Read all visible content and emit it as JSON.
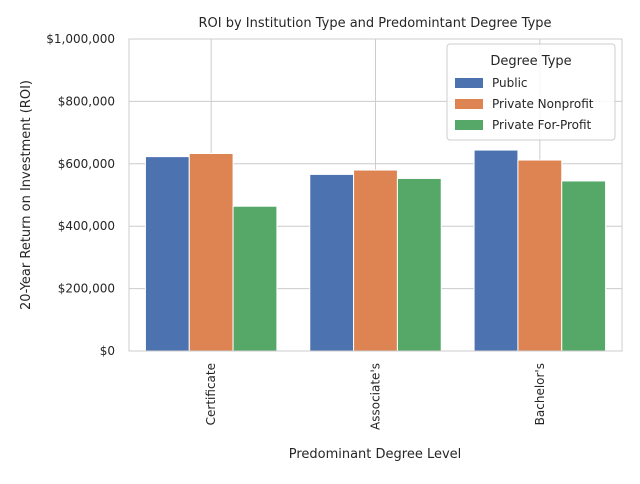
{
  "chart_data": {
    "type": "bar",
    "title": "ROI by Institution Type and Predomintant Degree Type",
    "xlabel": "Predominant Degree Level",
    "ylabel": "20-Year Return on Investment (ROI)",
    "categories": [
      "Certificate",
      "Associate's",
      "Bachelor's"
    ],
    "series": [
      {
        "name": "Public",
        "color": "#4c72b0",
        "values": [
          623000,
          566000,
          644000
        ]
      },
      {
        "name": "Private Nonprofit",
        "color": "#dd8452",
        "values": [
          633000,
          580000,
          612000
        ]
      },
      {
        "name": "Private For-Profit",
        "color": "#55a868",
        "values": [
          464000,
          553000,
          545000
        ]
      }
    ],
    "ylim": [
      0,
      1000000
    ],
    "yticks": [
      0,
      200000,
      400000,
      600000,
      800000,
      1000000
    ],
    "ytick_labels": [
      "$0",
      "$200,000",
      "$400,000",
      "$600,000",
      "$800,000",
      "$1,000,000"
    ],
    "legend": {
      "title": "Degree Type",
      "placement": "top-right"
    },
    "grid": true,
    "colors": {
      "grid": "#cccccc",
      "frame": "#cccccc",
      "text": "#262626"
    }
  }
}
